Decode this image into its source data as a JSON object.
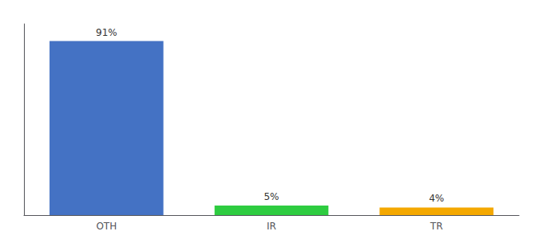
{
  "chart_data": {
    "type": "bar",
    "categories": [
      "OTH",
      "IR",
      "TR"
    ],
    "values": [
      91,
      5,
      4
    ],
    "value_labels": [
      "91%",
      "5%",
      "4%"
    ],
    "colors": [
      "#4472C4",
      "#2ECC40",
      "#F4A800"
    ],
    "data_labels": true,
    "ylim": [
      0,
      100
    ],
    "tick_labels": "x",
    "grid": false
  }
}
